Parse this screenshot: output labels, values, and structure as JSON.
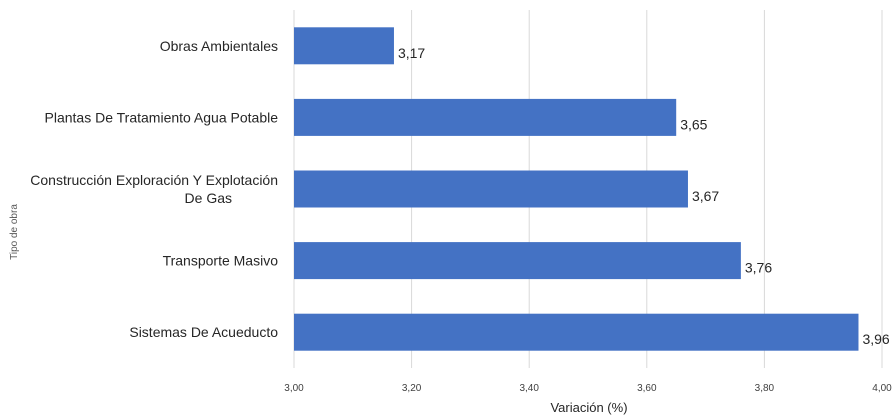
{
  "chart_data": {
    "type": "bar",
    "orientation": "horizontal",
    "categories": [
      "Obras Ambientales",
      "Plantas De Tratamiento Agua Potable",
      "Construcción Exploración Y Explotación De Gas",
      "Transporte Masivo",
      "Sistemas De Acueducto"
    ],
    "values": [
      3.17,
      3.65,
      3.67,
      3.76,
      3.96
    ],
    "value_labels": [
      "3,17",
      "3,65",
      "3,67",
      "3,76",
      "3,96"
    ],
    "xlabel": "Variación (%)",
    "ylabel": "Tipo de obra",
    "xlim": [
      3.0,
      4.0
    ],
    "xticks": [
      3.0,
      3.2,
      3.4,
      3.6,
      3.8,
      4.0
    ],
    "xtick_labels": [
      "3,00",
      "3,20",
      "3,40",
      "3,60",
      "3,80",
      "4,00"
    ],
    "grid": true,
    "legend": "none",
    "colors": {
      "bar": "#4472c4",
      "grid": "#d9d9d9"
    }
  }
}
